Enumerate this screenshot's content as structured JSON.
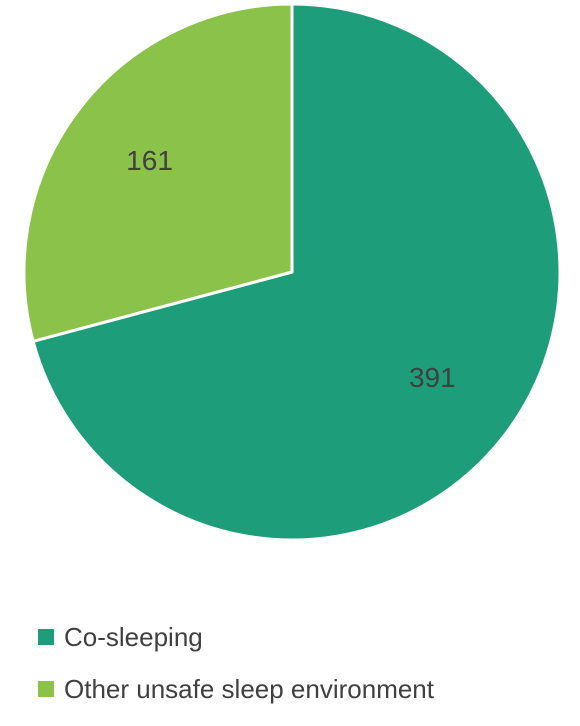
{
  "chart_data": {
    "type": "pie",
    "categories": [
      "Co-sleeping",
      "Other unsafe sleep environment"
    ],
    "values": [
      391,
      161
    ],
    "colors": [
      "#1e9d7a",
      "#8bc24a"
    ],
    "data_labels": [
      "391",
      "161"
    ],
    "legend_position": "bottom",
    "start_angle_deg": 0,
    "direction": "clockwise"
  }
}
